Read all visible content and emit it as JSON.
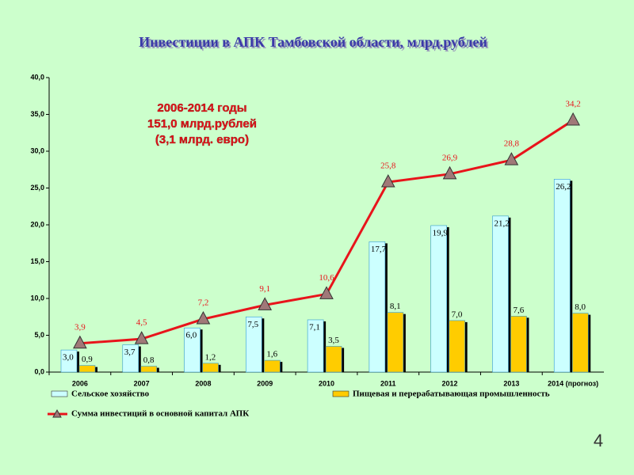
{
  "chart_data": {
    "type": "bar",
    "title": "Инвестиции в АПК Тамбовской области, млрд.рублей",
    "annotation": [
      "2006-2014 годы",
      "151,0 млрд.рублей",
      "(3,1 млрд. евро)"
    ],
    "categories": [
      "2006",
      "2007",
      "2008",
      "2009",
      "2010",
      "2011",
      "2012",
      "2013",
      "2014 (прогноз)"
    ],
    "series": [
      {
        "name": "Сельское хозяйство",
        "type": "bar",
        "color": "#ccffff",
        "values": [
          3.0,
          3.7,
          6.0,
          7.5,
          7.1,
          17.7,
          19.9,
          21.2,
          26.2
        ],
        "value_labels": [
          "3,0",
          "3,7",
          "6,0",
          "7,5",
          "7,1",
          "17,7",
          "19,9",
          "21,2",
          "26,2"
        ]
      },
      {
        "name": "Пищевая и перерабатывающая промышленность",
        "type": "bar",
        "color": "#ffcc00",
        "values": [
          0.9,
          0.8,
          1.2,
          1.6,
          3.5,
          8.1,
          7.0,
          7.6,
          8.0
        ],
        "value_labels": [
          "0,9",
          "0,8",
          "1,2",
          "1,6",
          "3,5",
          "8,1",
          "7,0",
          "7,6",
          "8,0"
        ]
      },
      {
        "name": "Сумма инвестиций в основной капитал АПК",
        "type": "line",
        "color": "#e8141b",
        "values": [
          3.9,
          4.5,
          7.2,
          9.1,
          10.6,
          25.8,
          26.9,
          28.8,
          34.2
        ],
        "value_labels": [
          "3,9",
          "4,5",
          "7,2",
          "9,1",
          "10,6",
          "25,8",
          "26,9",
          "28,8",
          "34,2"
        ]
      }
    ],
    "ylim": [
      0,
      40
    ],
    "yticks": [
      {
        "value": 0,
        "label": "0,0"
      },
      {
        "value": 5,
        "label": "5,0"
      },
      {
        "value": 10,
        "label": "10,0"
      },
      {
        "value": 15,
        "label": "15,0"
      },
      {
        "value": 20,
        "label": "20,0"
      },
      {
        "value": 25,
        "label": "25,0"
      },
      {
        "value": 30,
        "label": "30,0"
      },
      {
        "value": 35,
        "label": "35,0"
      },
      {
        "value": 40,
        "label": "40,0"
      }
    ],
    "grid": false
  },
  "page_number": "4"
}
